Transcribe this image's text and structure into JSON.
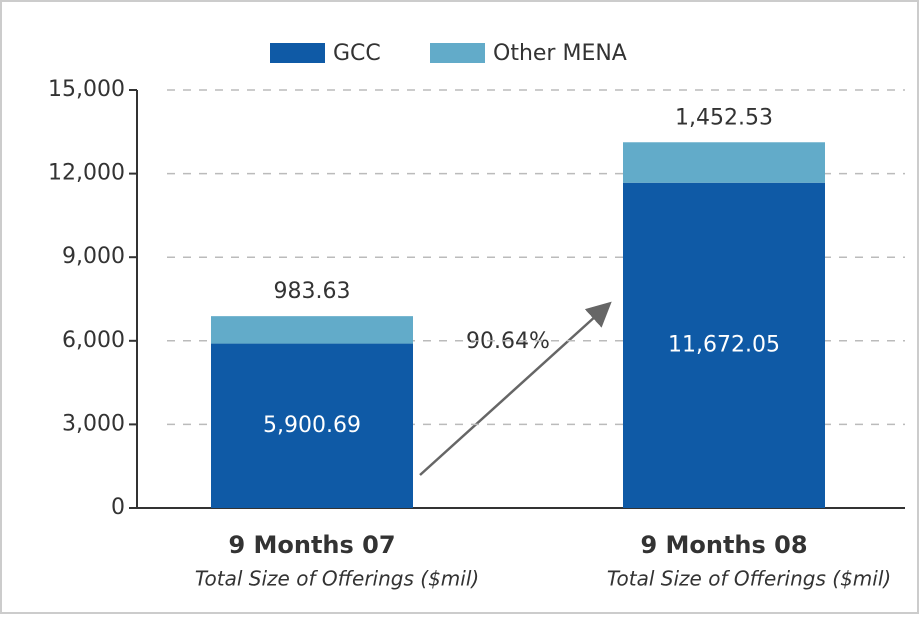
{
  "chart_data": {
    "type": "stacked_bar",
    "categories": [
      "9 Months 07",
      "9 Months 08"
    ],
    "xlabel": "Total Size of Offerings ($mil)",
    "series": [
      {
        "name": "GCC",
        "color": "#0f5aa6",
        "values": [
          5900.69,
          11672.05
        ],
        "value_labels": [
          "5,900.69",
          "11,672.05"
        ]
      },
      {
        "name": "Other MENA",
        "color": "#62abc9",
        "values": [
          983.63,
          1452.53
        ],
        "value_labels": [
          "983.63",
          "1,452.53"
        ]
      }
    ],
    "annotation": "90.64%",
    "ylim": [
      0,
      15000
    ],
    "yticks": [
      0,
      {
        "value": 3000,
        "label": "3,000"
      },
      {
        "value": 6000,
        "label": "6,000"
      },
      {
        "value": 9000,
        "label": "9,000"
      },
      {
        "value": 12000,
        "label": "12,000"
      },
      {
        "value": 15000,
        "label": "15,000"
      }
    ],
    "grid": true,
    "legend": "top"
  }
}
